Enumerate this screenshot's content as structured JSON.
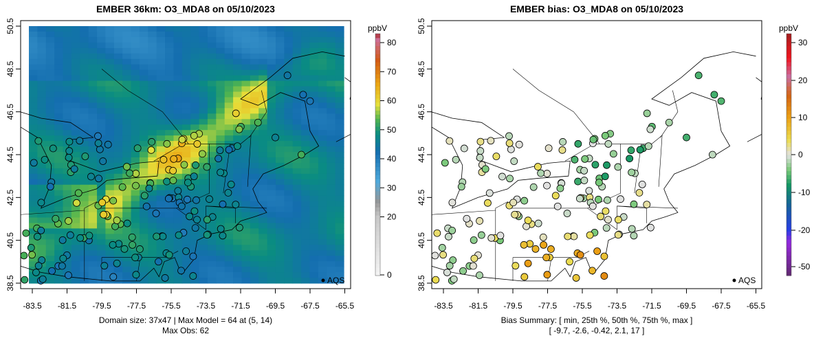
{
  "chart_data": [
    {
      "type": "heatmap",
      "title": "EMBER 36km: O3_MDA8 on 05/10/2023",
      "x_ticks": [
        "-83.5",
        "-81.5",
        "-79.5",
        "-77.5",
        "-75.5",
        "-73.5",
        "-71.5",
        "-69.5",
        "-67.5",
        "-65.5"
      ],
      "y_ticks": [
        "38.5",
        "40.5",
        "42.5",
        "44.5",
        "46.5",
        "48.5",
        "50.5"
      ],
      "xlim": [
        -84.2,
        -65.5
      ],
      "ylim": [
        38.5,
        50.5
      ],
      "colorbar": {
        "unit": "ppbV",
        "ticks": [
          "0",
          "20",
          "30",
          "40",
          "50",
          "60",
          "70",
          "80"
        ],
        "range": [
          0,
          82
        ]
      },
      "legend": "AQS",
      "legend_position": "bottom-right",
      "footer": [
        "Domain size: 37x47 | Max Model = 64 at (5, 14)",
        "Max Obs: 62"
      ]
    },
    {
      "type": "scatter",
      "title": "EMBER bias: O3_MDA8 on 05/10/2023",
      "x_ticks": [
        "-83.5",
        "-81.5",
        "-79.5",
        "-77.5",
        "-75.5",
        "-73.5",
        "-71.5",
        "-69.5",
        "-67.5",
        "-65.5"
      ],
      "y_ticks": [
        "38.5",
        "40.5",
        "42.5",
        "44.5",
        "46.5",
        "48.5",
        "50.5"
      ],
      "xlim": [
        -84.2,
        -65.5
      ],
      "ylim": [
        38.5,
        50.5
      ],
      "colorbar": {
        "unit": "ppbV",
        "ticks": [
          "-50",
          "-20",
          "-10",
          "0",
          "10",
          "20",
          "30"
        ],
        "range": [
          -50,
          33
        ]
      },
      "legend": "AQS",
      "legend_position": "bottom-right",
      "footer": [
        "Bias Summary: [ min, 25th %, 50th %, 75th %, max ]",
        "[ -9.7,   -2.6,   -0.42,   2.1,   17 ]"
      ],
      "bias_summary": {
        "min": -9.7,
        "p25": -2.6,
        "p50": -0.42,
        "p75": 2.1,
        "max": 17
      }
    }
  ]
}
